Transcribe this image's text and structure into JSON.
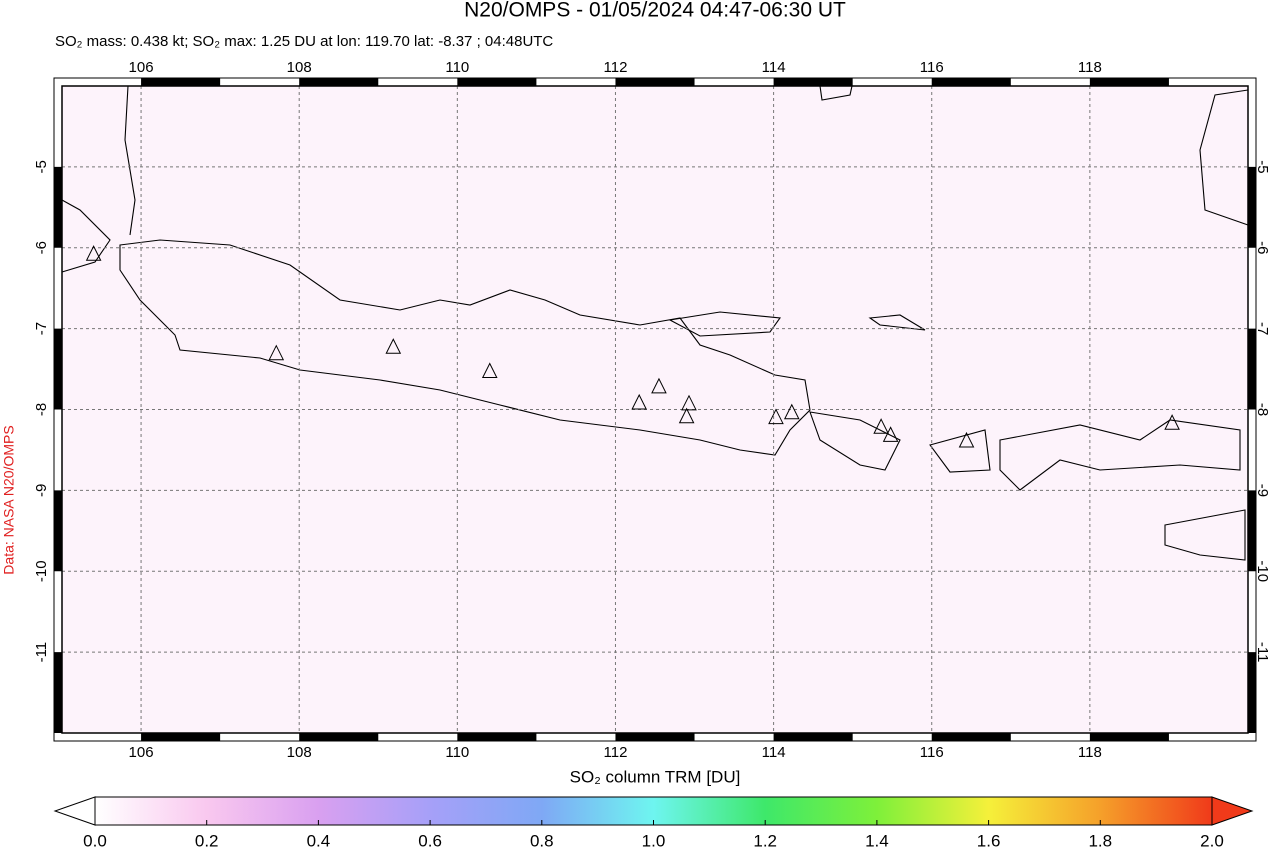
{
  "chart_data": {
    "type": "map",
    "title": "N20/OMPS - 01/05/2024 04:47-06:30 UT",
    "subtitle": "SO₂ mass: 0.438 kt; SO₂ max: 1.25 DU at lon: 119.70 lat: -8.37 ; 04:48UTC",
    "side_label": "Data: NASA N20/OMPS",
    "xlim": [
      105,
      120
    ],
    "ylim": [
      -12,
      -4
    ],
    "xticks": [
      106,
      108,
      110,
      112,
      114,
      116,
      118
    ],
    "yticks": [
      -5,
      -6,
      -7,
      -8,
      -9,
      -10,
      -11
    ],
    "grid": true,
    "volcanoes": {
      "lon": [
        105.4,
        107.71,
        109.19,
        110.41,
        112.3,
        112.55,
        112.93,
        112.9,
        114.03,
        114.23,
        115.36,
        115.48,
        116.44,
        119.04
      ],
      "lat": [
        -6.08,
        -7.31,
        -7.23,
        -7.53,
        -7.92,
        -7.72,
        -7.93,
        -8.09,
        -8.1,
        -8.04,
        -8.22,
        -8.32,
        -8.39,
        -8.17
      ]
    },
    "colorbar": {
      "label": "SO₂ column TRM [DU]",
      "lim": [
        0,
        2
      ],
      "ticks": [
        {
          "value": 0,
          "label": "0.0"
        },
        {
          "value": 0.2,
          "label": "0.2"
        },
        {
          "value": 0.4,
          "label": "0.4"
        },
        {
          "value": 0.6,
          "label": "0.6"
        },
        {
          "value": 0.8,
          "label": "0.8"
        },
        {
          "value": 1,
          "label": "1.0"
        },
        {
          "value": 1.2,
          "label": "1.2"
        },
        {
          "value": 1.4,
          "label": "1.4"
        },
        {
          "value": 1.6,
          "label": "1.6"
        },
        {
          "value": 1.8,
          "label": "1.8"
        },
        {
          "value": 2,
          "label": "2.0"
        }
      ],
      "colors": [
        "#ffffff",
        "#f9c8ef",
        "#d9a0f0",
        "#a6a0f8",
        "#7fa8f5",
        "#6ef5f0",
        "#3ee86a",
        "#7ef03a",
        "#f5f03a",
        "#f5a02a",
        "#f03a1a"
      ]
    }
  }
}
